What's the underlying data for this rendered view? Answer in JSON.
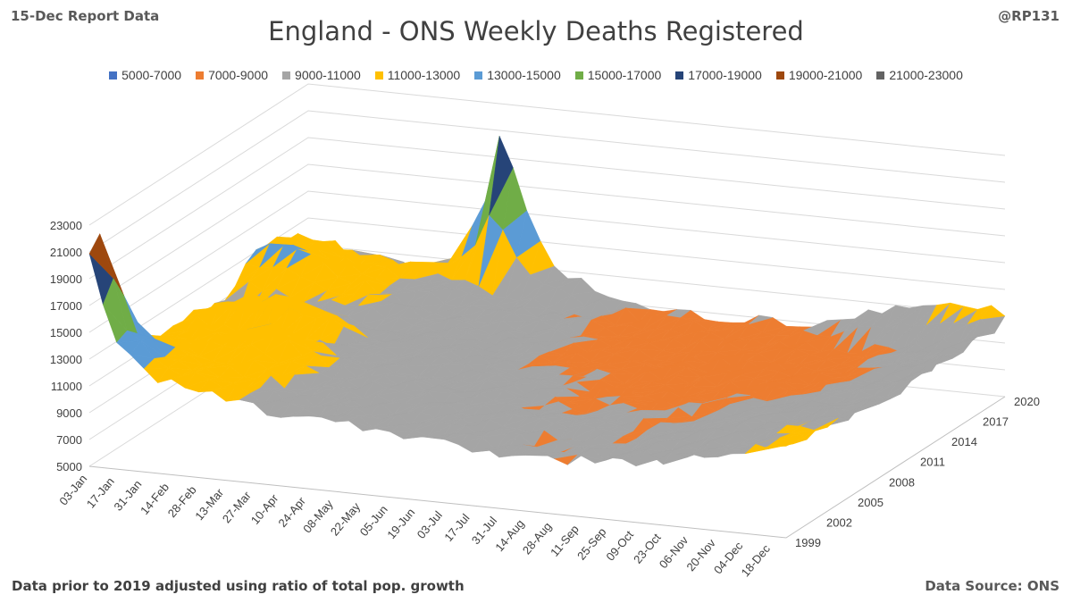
{
  "header": {
    "report_date": "15-Dec Report Data",
    "handle": "@RP131"
  },
  "footer": {
    "note": "Data prior to 2019 adjusted using ratio of total pop. growth",
    "source": "Data Source: ONS"
  },
  "chart_data": {
    "type": "surface",
    "title": "England - ONS Weekly Deaths Registered",
    "legend": [
      {
        "label": "5000-7000",
        "color": "#4472c4"
      },
      {
        "label": "7000-9000",
        "color": "#ed7d31"
      },
      {
        "label": "9000-11000",
        "color": "#a5a5a5"
      },
      {
        "label": "11000-13000",
        "color": "#ffc000"
      },
      {
        "label": "13000-15000",
        "color": "#5b9bd5"
      },
      {
        "label": "15000-17000",
        "color": "#70ad47"
      },
      {
        "label": "17000-19000",
        "color": "#264478"
      },
      {
        "label": "19000-21000",
        "color": "#9e480e"
      },
      {
        "label": "21000-23000",
        "color": "#636363"
      }
    ],
    "band_edges": [
      5000,
      7000,
      9000,
      11000,
      13000,
      15000,
      17000,
      19000,
      21000,
      23000
    ],
    "z_axis": {
      "ticks": [
        "5000",
        "7000",
        "9000",
        "11000",
        "13000",
        "15000",
        "17000",
        "19000",
        "21000",
        "23000"
      ],
      "range": [
        5000,
        23000
      ]
    },
    "x_axis": {
      "label": "",
      "ticks": [
        "03-Jan",
        "17-Jan",
        "31-Jan",
        "14-Feb",
        "28-Feb",
        "13-Mar",
        "27-Mar",
        "10-Apr",
        "24-Apr",
        "08-May",
        "22-May",
        "05-Jun",
        "19-Jun",
        "03-Jul",
        "17-Jul",
        "31-Jul",
        "14-Aug",
        "28-Aug",
        "11-Sep",
        "25-Sep",
        "09-Oct",
        "23-Oct",
        "06-Nov",
        "20-Nov",
        "04-Dec",
        "18-Dec"
      ]
    },
    "y_axis": {
      "label": "",
      "ticks": [
        "1999",
        "2002",
        "2005",
        "2008",
        "2011",
        "2014",
        "2017",
        "2020"
      ],
      "range": [
        1999,
        2020
      ]
    },
    "x_week_range": [
      1,
      52
    ],
    "profiles": [
      {
        "year": 1999,
        "points": [
          [
            1,
            20500
          ],
          [
            3,
            14000
          ],
          [
            6,
            12000
          ],
          [
            10,
            11500
          ],
          [
            14,
            10500
          ],
          [
            20,
            10000
          ],
          [
            26,
            9500
          ],
          [
            32,
            9000
          ],
          [
            38,
            9200
          ],
          [
            44,
            10000
          ],
          [
            48,
            10800
          ],
          [
            52,
            12000
          ]
        ]
      },
      {
        "year": 2000,
        "points": [
          [
            1,
            22000
          ],
          [
            3,
            15000
          ],
          [
            6,
            12500
          ],
          [
            10,
            11500
          ],
          [
            14,
            10500
          ],
          [
            20,
            10000
          ],
          [
            26,
            9500
          ],
          [
            32,
            9000
          ],
          [
            38,
            9200
          ],
          [
            44,
            10000
          ],
          [
            48,
            10500
          ],
          [
            52,
            11500
          ]
        ]
      },
      {
        "year": 2003,
        "points": [
          [
            1,
            12500
          ],
          [
            6,
            12000
          ],
          [
            10,
            11500
          ],
          [
            14,
            10500
          ],
          [
            20,
            10000
          ],
          [
            26,
            9600
          ],
          [
            32,
            9300
          ],
          [
            38,
            9300
          ],
          [
            44,
            10200
          ],
          [
            48,
            10500
          ],
          [
            52,
            11500
          ]
        ]
      },
      {
        "year": 2005,
        "points": [
          [
            1,
            11500
          ],
          [
            6,
            12000
          ],
          [
            9,
            13500
          ],
          [
            10,
            12500
          ],
          [
            14,
            10800
          ],
          [
            20,
            10000
          ],
          [
            26,
            9500
          ],
          [
            32,
            9000
          ],
          [
            38,
            9000
          ],
          [
            44,
            9800
          ],
          [
            48,
            10200
          ],
          [
            52,
            11000
          ]
        ]
      },
      {
        "year": 2008,
        "points": [
          [
            1,
            11500
          ],
          [
            6,
            11000
          ],
          [
            10,
            11000
          ],
          [
            14,
            10500
          ],
          [
            20,
            9800
          ],
          [
            26,
            9300
          ],
          [
            32,
            8900
          ],
          [
            38,
            8800
          ],
          [
            44,
            9400
          ],
          [
            48,
            10000
          ],
          [
            52,
            10800
          ]
        ]
      },
      {
        "year": 2009,
        "points": [
          [
            1,
            11500
          ],
          [
            4,
            12500
          ],
          [
            7,
            13500
          ],
          [
            9,
            12500
          ],
          [
            14,
            10500
          ],
          [
            20,
            9600
          ],
          [
            26,
            9100
          ],
          [
            32,
            8600
          ],
          [
            38,
            8600
          ],
          [
            44,
            9100
          ],
          [
            48,
            9700
          ],
          [
            52,
            10500
          ]
        ]
      },
      {
        "year": 2012,
        "points": [
          [
            1,
            10500
          ],
          [
            6,
            10500
          ],
          [
            10,
            10500
          ],
          [
            14,
            10000
          ],
          [
            20,
            9500
          ],
          [
            26,
            9000
          ],
          [
            32,
            8500
          ],
          [
            38,
            8400
          ],
          [
            44,
            8900
          ],
          [
            48,
            9400
          ],
          [
            52,
            10500
          ]
        ]
      },
      {
        "year": 2015,
        "points": [
          [
            1,
            13000
          ],
          [
            3,
            13800
          ],
          [
            6,
            12500
          ],
          [
            10,
            11000
          ],
          [
            14,
            10000
          ],
          [
            20,
            9400
          ],
          [
            26,
            8700
          ],
          [
            32,
            8300
          ],
          [
            38,
            8300
          ],
          [
            44,
            8800
          ],
          [
            48,
            9300
          ],
          [
            52,
            10800
          ]
        ]
      },
      {
        "year": 2018,
        "points": [
          [
            1,
            12500
          ],
          [
            3,
            12000
          ],
          [
            6,
            11500
          ],
          [
            10,
            11500
          ],
          [
            14,
            10300
          ],
          [
            20,
            9300
          ],
          [
            26,
            8700
          ],
          [
            32,
            8400
          ],
          [
            38,
            8300
          ],
          [
            44,
            8800
          ],
          [
            48,
            9300
          ],
          [
            52,
            10500
          ]
        ]
      },
      {
        "year": 2020,
        "points": [
          [
            1,
            11500
          ],
          [
            6,
            10500
          ],
          [
            10,
            10000
          ],
          [
            12,
            11000
          ],
          [
            14,
            16000
          ],
          [
            15,
            21000
          ],
          [
            16,
            18000
          ],
          [
            18,
            13000
          ],
          [
            20,
            10500
          ],
          [
            26,
            8800
          ],
          [
            32,
            8700
          ],
          [
            38,
            9000
          ],
          [
            44,
            11000
          ],
          [
            48,
            11800
          ],
          [
            51,
            11500
          ],
          [
            52,
            10800
          ]
        ]
      }
    ]
  }
}
